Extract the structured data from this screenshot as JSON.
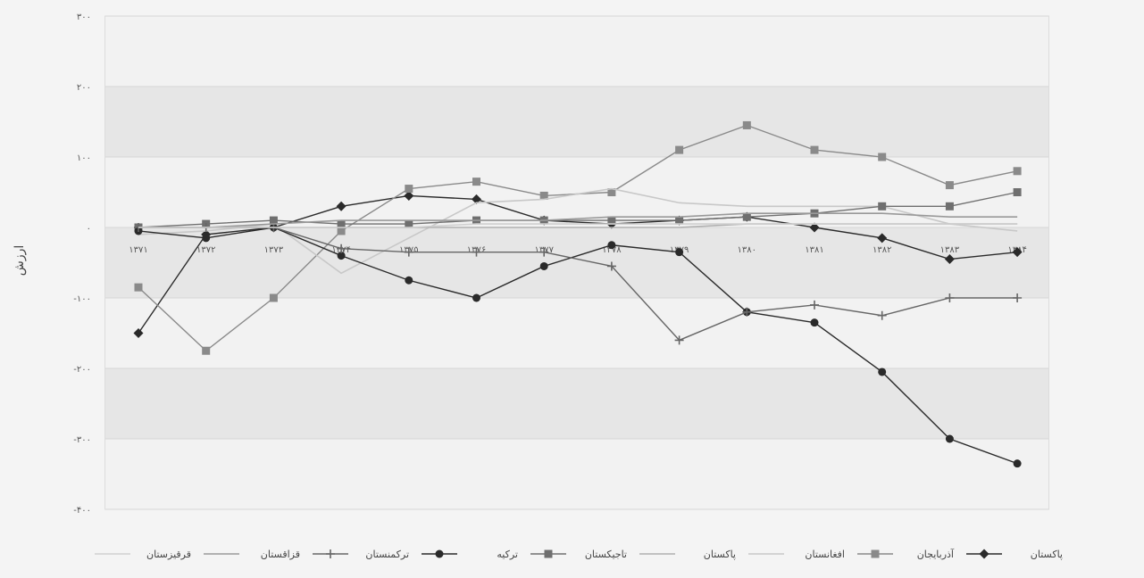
{
  "chart_data": {
    "type": "line",
    "title": "",
    "xlabel": "",
    "ylabel": "ارزش",
    "ylim": [
      -400,
      300
    ],
    "y_ticks": [
      -400,
      -300,
      -200,
      -100,
      0,
      100,
      200,
      300
    ],
    "y_tick_labels": [
      "-۴۰۰",
      "-۳۰۰",
      "-۲۰۰",
      "-۱۰۰",
      "۰",
      "۱۰۰",
      "۲۰۰",
      "۳۰۰"
    ],
    "categories": [
      "۱۳۷۱",
      "۱۳۷۲",
      "۱۳۷۳",
      "۱۳۷۴",
      "۱۳۷۵",
      "۱۳۷۶",
      "۱۳۷۷",
      "۱۳۷۸",
      "۱۳۷۹",
      "۱۳۸۰",
      "۱۳۸۱",
      "۱۳۸۲",
      "۱۳۸۳",
      "۱۳۸۴"
    ],
    "grid": true,
    "legend_position": "bottom",
    "series": [
      {
        "name": "پاکستان",
        "color": "#2a2a2a",
        "marker": "diamond",
        "values": [
          -150,
          -10,
          0,
          30,
          45,
          40,
          10,
          5,
          10,
          15,
          0,
          -15,
          -45,
          -35
        ]
      },
      {
        "name": "آذربایجان",
        "color": "#8a8a8a",
        "marker": "square",
        "values": [
          -85,
          -175,
          -100,
          -5,
          55,
          65,
          45,
          50,
          110,
          145,
          110,
          100,
          60,
          80
        ]
      },
      {
        "name": "افغانستان",
        "color": "#c8c8c8",
        "marker": "none",
        "values": [
          -10,
          -5,
          5,
          -65,
          -15,
          35,
          40,
          55,
          35,
          30,
          30,
          30,
          5,
          -5
        ]
      },
      {
        "name": "پاکستان",
        "color": "#b0b0b0",
        "marker": "none",
        "values": [
          0,
          0,
          0,
          0,
          0,
          0,
          0,
          0,
          0,
          5,
          5,
          5,
          5,
          5
        ]
      },
      {
        "name": "تاجیکستان",
        "color": "#6f6f6f",
        "marker": "square",
        "values": [
          0,
          5,
          10,
          5,
          5,
          10,
          10,
          10,
          10,
          15,
          20,
          30,
          30,
          50
        ]
      },
      {
        "name": "ترکیه",
        "color": "#2a2a2a",
        "marker": "circle",
        "values": [
          -5,
          -15,
          0,
          -40,
          -75,
          -100,
          -55,
          -25,
          -35,
          -120,
          -135,
          -205,
          -300,
          -335
        ]
      },
      {
        "name": "ترکمنستان",
        "color": "#666666",
        "marker": "plus",
        "values": [
          0,
          0,
          0,
          -30,
          -35,
          -35,
          -35,
          -55,
          -160,
          -120,
          -110,
          -125,
          -100,
          -100
        ]
      },
      {
        "name": "قزاقستان",
        "color": "#999999",
        "marker": "none",
        "values": [
          0,
          0,
          5,
          10,
          10,
          10,
          10,
          15,
          15,
          20,
          20,
          20,
          15,
          15
        ]
      },
      {
        "name": "قرقیزستان",
        "color": "#d0d0d0",
        "marker": "none",
        "values": [
          0,
          0,
          0,
          0,
          0,
          5,
          5,
          5,
          5,
          5,
          5,
          5,
          5,
          5
        ]
      }
    ]
  }
}
